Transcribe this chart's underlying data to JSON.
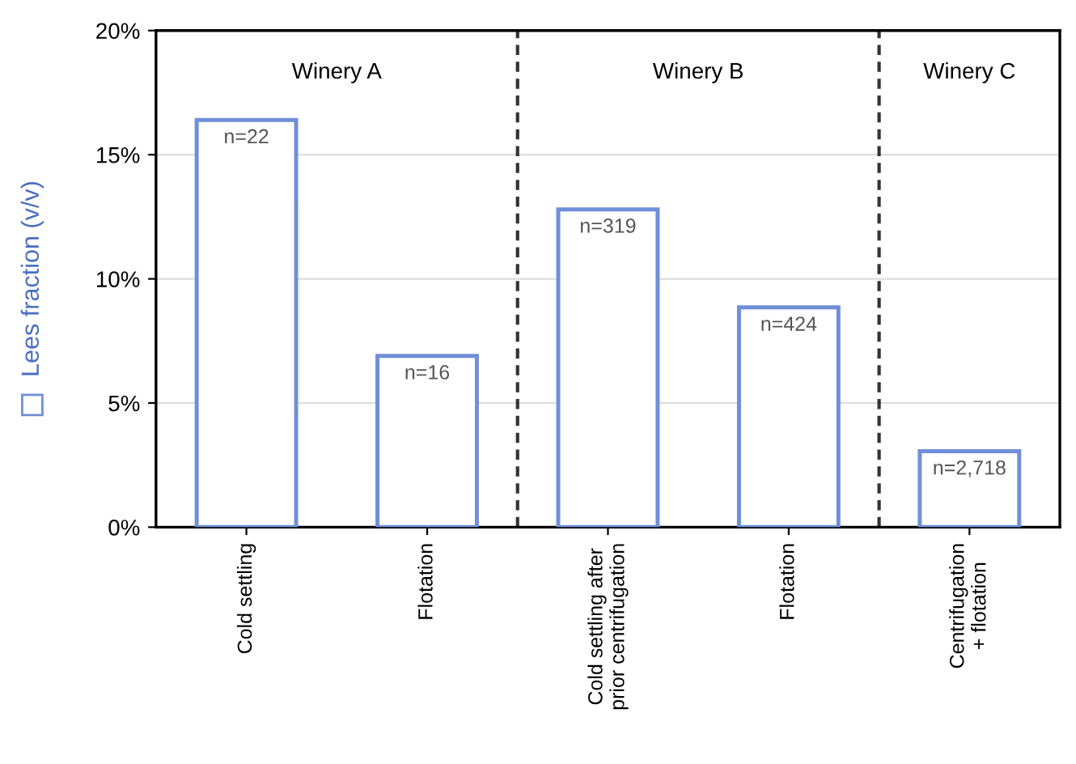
{
  "chart_data": {
    "type": "bar",
    "categories": [
      "Cold settling",
      "Flotation",
      "Cold settling after\nprior centrifugation",
      "Flotation",
      "Centrifugation\n+ flotation"
    ],
    "series": [
      {
        "name": "Lees fraction (v/v)",
        "color": "#6f8fd8",
        "values": [
          16.4,
          6.9,
          12.8,
          8.85,
          3.06
        ]
      }
    ],
    "ylim": [
      0,
      20
    ],
    "yticks": [
      {
        "value": 0,
        "label": "0%"
      },
      {
        "value": 5,
        "label": "5%"
      },
      {
        "value": 10,
        "label": "10%"
      },
      {
        "value": 15,
        "label": "15%"
      },
      {
        "value": 20,
        "label": "20%"
      }
    ],
    "annotations": [
      "Winery A",
      "Winery B",
      "Winery C",
      "n=22",
      "n=16",
      "n=319",
      "n=424",
      "n=2,718"
    ],
    "grid": "y",
    "legend": "left"
  }
}
